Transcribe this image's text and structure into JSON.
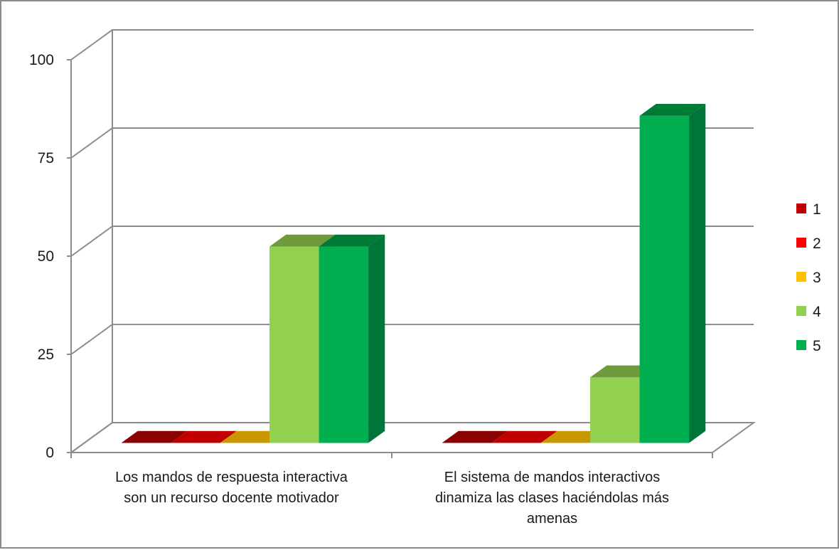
{
  "chart_data": {
    "type": "bar",
    "style": "3d-clustered-column",
    "categories": [
      [
        "Los mandos de respuesta interactiva",
        "son un recurso docente motivador"
      ],
      [
        "El sistema de mandos interactivos",
        "dinamiza las clases haciéndolas más",
        "amenas"
      ]
    ],
    "series": [
      {
        "name": "1",
        "values": [
          0,
          0
        ],
        "color": "#c00000",
        "top_color": "#8b0000",
        "side_color": "#7a0000"
      },
      {
        "name": "2",
        "values": [
          0,
          0
        ],
        "color": "#ff0000",
        "top_color": "#c00000",
        "side_color": "#a80000"
      },
      {
        "name": "3",
        "values": [
          0,
          0
        ],
        "color": "#ffc000",
        "top_color": "#c99700",
        "side_color": "#b08400"
      },
      {
        "name": "4",
        "values": [
          50,
          16.7
        ],
        "color": "#92d050",
        "top_color": "#6e9a3c",
        "side_color": "#6b9a3a"
      },
      {
        "name": "5",
        "values": [
          50,
          83.3
        ],
        "color": "#00b050",
        "top_color": "#007a37",
        "side_color": "#00753a"
      }
    ],
    "yticks": [
      "0",
      "25",
      "50",
      "75",
      "100"
    ],
    "ylim": [
      0,
      100
    ],
    "grid": true,
    "legend": "right",
    "title": "",
    "xlabel": "",
    "ylabel": ""
  }
}
